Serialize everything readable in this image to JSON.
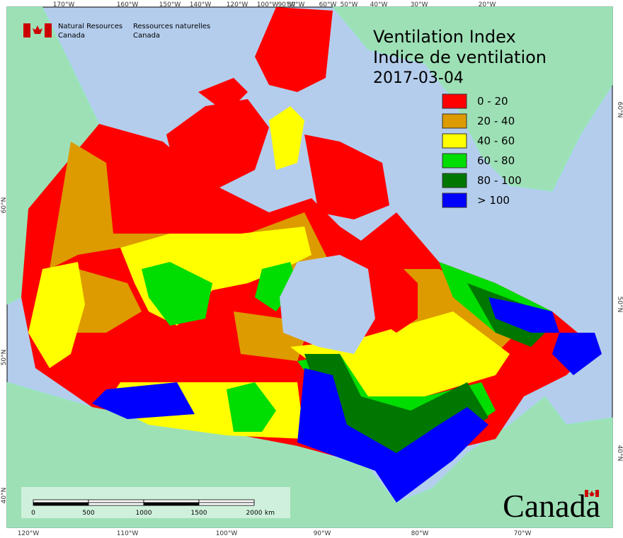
{
  "header": {
    "agency_en": [
      "Natural Resources",
      "Canada"
    ],
    "agency_fr": [
      "Ressources naturelles",
      "Canada"
    ]
  },
  "title": [
    "Ventilation Index",
    "Indice de ventilation",
    "2017-03-04"
  ],
  "legend": [
    {
      "label": "0 - 20",
      "color": "#ff0000"
    },
    {
      "label": "20 - 40",
      "color": "#dd9b00"
    },
    {
      "label": "40 - 60",
      "color": "#ffff00"
    },
    {
      "label": "60 - 80",
      "color": "#00dd00"
    },
    {
      "label": "80 - 100",
      "color": "#007700"
    },
    {
      "label": "> 100",
      "color": "#0000ff"
    }
  ],
  "graticule": {
    "top": [
      "170°W",
      "160°W",
      "150°W",
      "140°W",
      "120°W",
      "100°W",
      "90°W",
      "80°W",
      "60°W",
      "50°W",
      "40°W",
      "30°W",
      "20°W"
    ],
    "bottom": [
      "120°W",
      "110°W",
      "100°W",
      "90°W",
      "80°W",
      "70°W"
    ],
    "left": [
      "60°N",
      "50°N",
      "40°N"
    ],
    "right": [
      "60°N",
      "50°N",
      "40°N"
    ]
  },
  "scale_bar": {
    "labels": [
      "0",
      "500",
      "1000",
      "1500",
      "2000"
    ],
    "unit": "km"
  },
  "wordmark": "Canada"
}
